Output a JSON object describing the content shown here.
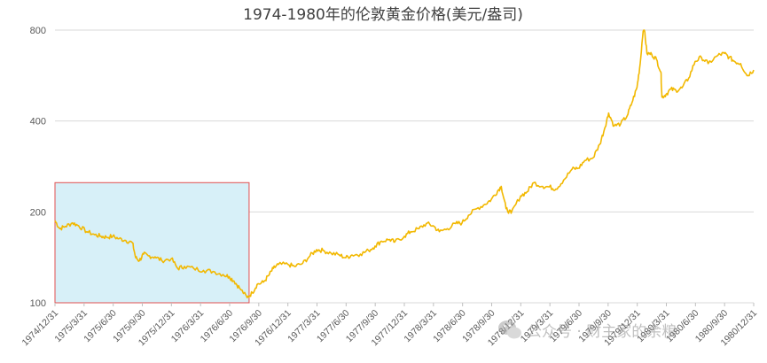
{
  "chart_data": {
    "type": "line",
    "title": "1974-1980年的伦敦黄金价格(美元/盎司)",
    "xlabel": "",
    "ylabel": "",
    "y_scale": "log",
    "ylim": [
      100,
      800
    ],
    "y_ticks": [
      100,
      200,
      400,
      800
    ],
    "x_ticks": [
      "1974/12/31",
      "1975/3/31",
      "1975/6/30",
      "1975/9/30",
      "1975/12/31",
      "1976/3/31",
      "1976/6/30",
      "1976/9/30",
      "1976/12/31",
      "1977/3/31",
      "1977/6/30",
      "1977/9/30",
      "1977/12/31",
      "1978/3/31",
      "1978/6/30",
      "1978/9/30",
      "1978/12/31",
      "1979/3/31",
      "1979/6/30",
      "1979/9/30",
      "1979/12/31",
      "1980/3/31",
      "1980/6/30",
      "1980/9/30",
      "1980/12/31"
    ],
    "legend": "none",
    "grid": "horizontal",
    "series": [
      {
        "color": "#f2b800",
        "points": [
          [
            "1974-12-31",
            187
          ],
          [
            "1975-01-15",
            176
          ],
          [
            "1975-02-01",
            179
          ],
          [
            "1975-02-24",
            184
          ],
          [
            "1975-03-15",
            180
          ],
          [
            "1975-04-10",
            172
          ],
          [
            "1975-05-05",
            168
          ],
          [
            "1975-05-25",
            166
          ],
          [
            "1975-06-10",
            165
          ],
          [
            "1975-06-30",
            166
          ],
          [
            "1975-07-20",
            163
          ],
          [
            "1975-08-10",
            161
          ],
          [
            "1975-08-31",
            158
          ],
          [
            "1975-09-10",
            141
          ],
          [
            "1975-09-22",
            138
          ],
          [
            "1975-10-05",
            145
          ],
          [
            "1975-10-20",
            143
          ],
          [
            "1975-11-10",
            142
          ],
          [
            "1975-12-01",
            138
          ],
          [
            "1975-12-31",
            140
          ],
          [
            "1976-01-20",
            130
          ],
          [
            "1976-02-10",
            132
          ],
          [
            "1976-03-10",
            130
          ],
          [
            "1976-04-10",
            128
          ],
          [
            "1976-05-10",
            127
          ],
          [
            "1976-06-10",
            124
          ],
          [
            "1976-06-30",
            122
          ],
          [
            "1976-07-15",
            118
          ],
          [
            "1976-08-01",
            112
          ],
          [
            "1976-08-25",
            104
          ],
          [
            "1976-09-10",
            108
          ],
          [
            "1976-09-25",
            115
          ],
          [
            "1976-10-15",
            117
          ],
          [
            "1976-10-31",
            123
          ],
          [
            "1976-11-15",
            130
          ],
          [
            "1976-12-01",
            134
          ],
          [
            "1976-12-31",
            134
          ],
          [
            "1977-01-20",
            132
          ],
          [
            "1977-02-15",
            135
          ],
          [
            "1977-03-10",
            143
          ],
          [
            "1977-03-31",
            150
          ],
          [
            "1977-04-20",
            149
          ],
          [
            "1977-05-15",
            146
          ],
          [
            "1977-06-10",
            144
          ],
          [
            "1977-06-30",
            141
          ],
          [
            "1977-07-20",
            144
          ],
          [
            "1977-08-15",
            145
          ],
          [
            "1977-09-10",
            149
          ],
          [
            "1977-09-30",
            154
          ],
          [
            "1977-10-20",
            160
          ],
          [
            "1977-11-15",
            162
          ],
          [
            "1977-12-01",
            159
          ],
          [
            "1977-12-31",
            166
          ],
          [
            "1978-01-20",
            172
          ],
          [
            "1978-02-15",
            176
          ],
          [
            "1978-03-10",
            183
          ],
          [
            "1978-03-31",
            180
          ],
          [
            "1978-04-20",
            172
          ],
          [
            "1978-05-15",
            176
          ],
          [
            "1978-06-10",
            183
          ],
          [
            "1978-06-30",
            184
          ],
          [
            "1978-07-20",
            195
          ],
          [
            "1978-08-15",
            205
          ],
          [
            "1978-09-10",
            212
          ],
          [
            "1978-09-30",
            220
          ],
          [
            "1978-10-20",
            235
          ],
          [
            "1978-10-31",
            243
          ],
          [
            "1978-11-15",
            205
          ],
          [
            "1978-12-01",
            198
          ],
          [
            "1978-12-31",
            226
          ],
          [
            "1979-01-20",
            233
          ],
          [
            "1979-02-10",
            250
          ],
          [
            "1979-03-10",
            243
          ],
          [
            "1979-03-31",
            242
          ],
          [
            "1979-04-20",
            238
          ],
          [
            "1979-05-15",
            255
          ],
          [
            "1979-06-10",
            277
          ],
          [
            "1979-06-30",
            279
          ],
          [
            "1979-07-20",
            296
          ],
          [
            "1979-08-15",
            302
          ],
          [
            "1979-09-05",
            335
          ],
          [
            "1979-09-20",
            377
          ],
          [
            "1979-10-03",
            425
          ],
          [
            "1979-10-20",
            385
          ],
          [
            "1979-11-10",
            392
          ],
          [
            "1979-11-30",
            416
          ],
          [
            "1979-12-15",
            460
          ],
          [
            "1979-12-31",
            517
          ],
          [
            "1980-01-10",
            620
          ],
          [
            "1980-01-21",
            850
          ],
          [
            "1980-01-31",
            670
          ],
          [
            "1980-02-15",
            665
          ],
          [
            "1980-03-01",
            640
          ],
          [
            "1980-03-15",
            580
          ],
          [
            "1980-03-18",
            480
          ],
          [
            "1980-03-31",
            490
          ],
          [
            "1980-04-15",
            510
          ],
          [
            "1980-05-01",
            505
          ],
          [
            "1980-05-20",
            515
          ],
          [
            "1980-06-10",
            555
          ],
          [
            "1980-06-30",
            630
          ],
          [
            "1980-07-20",
            650
          ],
          [
            "1980-08-10",
            620
          ],
          [
            "1980-09-10",
            660
          ],
          [
            "1980-09-30",
            670
          ],
          [
            "1980-10-15",
            650
          ],
          [
            "1980-11-01",
            630
          ],
          [
            "1980-11-20",
            620
          ],
          [
            "1980-12-10",
            565
          ],
          [
            "1980-12-31",
            590
          ]
        ]
      }
    ],
    "annotations": [
      {
        "type": "highlight-box",
        "from": "1974-12-31",
        "to": "1976-08-31",
        "ylim": [
          100,
          250
        ],
        "fill": "#d7f0f8",
        "stroke": "#e05050"
      }
    ]
  },
  "watermark": {
    "text": "公众号 · 财主家的余粮",
    "icon": "wechat-icon"
  }
}
